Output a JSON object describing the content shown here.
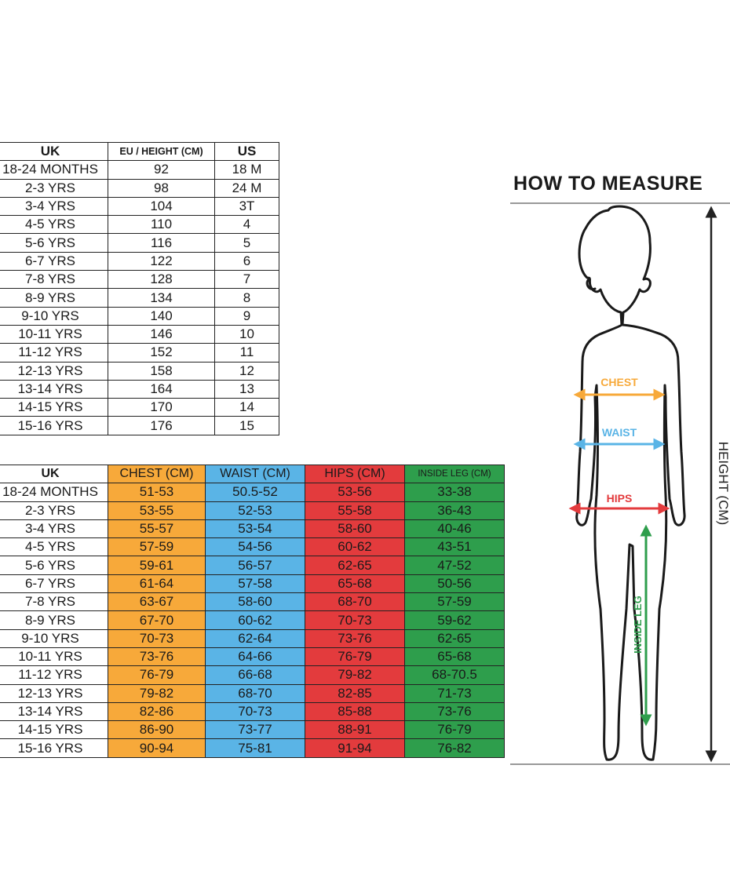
{
  "size_table": {
    "headers": [
      "UK",
      "EU / HEIGHT (CM)",
      "US"
    ],
    "rows": [
      [
        "18-24 MONTHS",
        "92",
        "18 M"
      ],
      [
        "2-3 YRS",
        "98",
        "24 M"
      ],
      [
        "3-4 YRS",
        "104",
        "3T"
      ],
      [
        "4-5 YRS",
        "110",
        "4"
      ],
      [
        "5-6 YRS",
        "116",
        "5"
      ],
      [
        "6-7 YRS",
        "122",
        "6"
      ],
      [
        "7-8 YRS",
        "128",
        "7"
      ],
      [
        "8-9 YRS",
        "134",
        "8"
      ],
      [
        "9-10 YRS",
        "140",
        "9"
      ],
      [
        "10-11 YRS",
        "146",
        "10"
      ],
      [
        "11-12 YRS",
        "152",
        "11"
      ],
      [
        "12-13 YRS",
        "158",
        "12"
      ],
      [
        "13-14 YRS",
        "164",
        "13"
      ],
      [
        "14-15 YRS",
        "170",
        "14"
      ],
      [
        "15-16 YRS",
        "176",
        "15"
      ]
    ]
  },
  "measure_table": {
    "headers": [
      "UK",
      "CHEST (CM)",
      "WAIST (CM)",
      "HIPS (CM)",
      "INSIDE LEG (CM)"
    ],
    "rows": [
      [
        "18-24 MONTHS",
        "51-53",
        "50.5-52",
        "53-56",
        "33-38"
      ],
      [
        "2-3 YRS",
        "53-55",
        "52-53",
        "55-58",
        "36-43"
      ],
      [
        "3-4 YRS",
        "55-57",
        "53-54",
        "58-60",
        "40-46"
      ],
      [
        "4-5 YRS",
        "57-59",
        "54-56",
        "60-62",
        "43-51"
      ],
      [
        "5-6 YRS",
        "59-61",
        "56-57",
        "62-65",
        "47-52"
      ],
      [
        "6-7 YRS",
        "61-64",
        "57-58",
        "65-68",
        "50-56"
      ],
      [
        "7-8 YRS",
        "63-67",
        "58-60",
        "68-70",
        "57-59"
      ],
      [
        "8-9 YRS",
        "67-70",
        "60-62",
        "70-73",
        "59-62"
      ],
      [
        "9-10 YRS",
        "70-73",
        "62-64",
        "73-76",
        "62-65"
      ],
      [
        "10-11 YRS",
        "73-76",
        "64-66",
        "76-79",
        "65-68"
      ],
      [
        "11-12 YRS",
        "76-79",
        "66-68",
        "79-82",
        "68-70.5"
      ],
      [
        "12-13 YRS",
        "79-82",
        "68-70",
        "82-85",
        "71-73"
      ],
      [
        "13-14 YRS",
        "82-86",
        "70-73",
        "85-88",
        "73-76"
      ],
      [
        "14-15 YRS",
        "86-90",
        "73-77",
        "88-91",
        "76-79"
      ],
      [
        "15-16 YRS",
        "90-94",
        "75-81",
        "91-94",
        "76-82"
      ]
    ]
  },
  "how_to_measure": {
    "title": "HOW TO MEASURE",
    "chest_label": "CHEST",
    "waist_label": "WAIST",
    "hips_label": "HIPS",
    "inside_leg_label": "INSIDE LEG",
    "height_label": "HEIGHT (CM)"
  },
  "colors": {
    "chest": "#f7a93a",
    "waist": "#5ab4e6",
    "hips": "#e33b3d",
    "inside_leg": "#2e9e4c"
  }
}
